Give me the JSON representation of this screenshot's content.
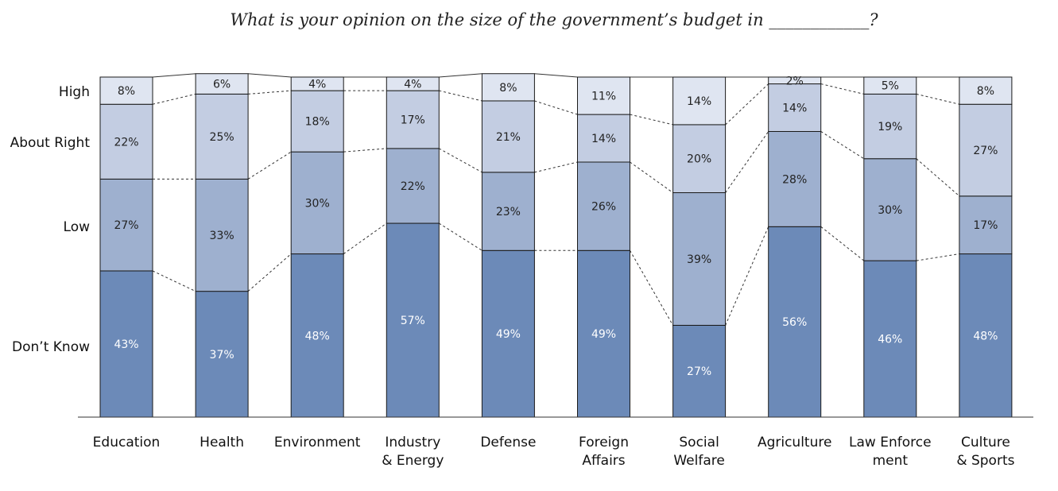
{
  "chart_data": {
    "type": "bar",
    "stacked": true,
    "title": "What is your opinion on the size of the government’s budget in ____________?",
    "row_labels": [
      "High",
      "About Right",
      "Low",
      "Don’t Know"
    ],
    "categories": [
      [
        "Education"
      ],
      [
        "Health"
      ],
      [
        "Environment"
      ],
      [
        "Industry",
        "& Energy"
      ],
      [
        "Defense"
      ],
      [
        "Foreign",
        "Affairs"
      ],
      [
        "Social",
        "Welfare"
      ],
      [
        "Agriculture"
      ],
      [
        "Law Enforce",
        "ment"
      ],
      [
        "Culture",
        "& Sports"
      ]
    ],
    "series": [
      {
        "values": [
          43,
          37,
          48,
          57,
          49,
          49,
          27,
          56,
          46,
          48
        ],
        "labels": [
          "43%",
          "37%",
          "48%",
          "57%",
          "49%",
          "49%",
          "27%",
          "56%",
          "46%",
          "48%"
        ],
        "color": "#6c8ab8",
        "label_color": "#ffffff"
      },
      {
        "values": [
          27,
          33,
          30,
          22,
          23,
          26,
          39,
          28,
          30,
          17
        ],
        "labels": [
          "27%",
          "33%",
          "30%",
          "22%",
          "23%",
          "26%",
          "39%",
          "28%",
          "30%",
          "17%"
        ],
        "color": "#9eb0cf",
        "label_color": "#222222"
      },
      {
        "values": [
          22,
          25,
          18,
          17,
          21,
          14,
          20,
          14,
          19,
          27
        ],
        "labels": [
          "22%",
          "25%",
          "18%",
          "17%",
          "21%",
          "14%",
          "20%",
          "14%",
          "19%",
          "27%"
        ],
        "color": "#c3cde2",
        "label_color": "#222222"
      },
      {
        "values": [
          8,
          6,
          4,
          4,
          8,
          11,
          14,
          2,
          5,
          8
        ],
        "labels": [
          "8%",
          "6%",
          "4%",
          "4%",
          "8%",
          "11%",
          "14%",
          "2%",
          "5%",
          "8%"
        ],
        "color": "#dfe5f1",
        "label_color": "#222222"
      }
    ],
    "ylim": [
      0,
      100
    ],
    "connector_lines": "dashed",
    "legend": "none",
    "grid": false
  }
}
